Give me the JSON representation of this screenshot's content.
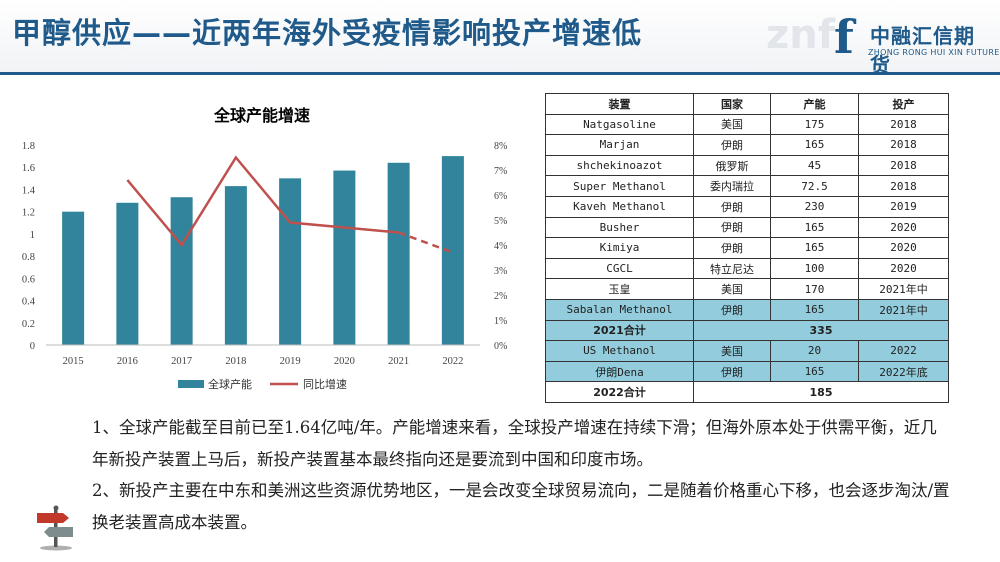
{
  "header": {
    "title": "甲醇供应——近两年海外受疫情影响投产增速低",
    "logo_cn": "中融汇信期货",
    "logo_en": "ZHONG RONG HUI XIN FUTURES"
  },
  "chart_data": {
    "type": "bar",
    "title": "全球产能增速",
    "categories": [
      "2015",
      "2016",
      "2017",
      "2018",
      "2019",
      "2020",
      "2021",
      "2022"
    ],
    "ylim": [
      0,
      1.8
    ],
    "yticks": [
      "0",
      "0.2",
      "0.4",
      "0.6",
      "0.8",
      "1",
      "1.2",
      "1.4",
      "1.6",
      "1.8"
    ],
    "y2lim": [
      0,
      8
    ],
    "y2ticks": [
      "0%",
      "1%",
      "2%",
      "3%",
      "4%",
      "5%",
      "6%",
      "7%",
      "8%"
    ],
    "grid": false,
    "legend_position": "bottom",
    "series": [
      {
        "name": "全球产能",
        "type": "bar",
        "color": "#31849b",
        "values": [
          1.2,
          1.28,
          1.33,
          1.43,
          1.5,
          1.57,
          1.64,
          1.7
        ]
      },
      {
        "name": "同比增速",
        "type": "line",
        "axis": "right",
        "color": "#c0504d",
        "values": [
          null,
          6.6,
          4.0,
          7.5,
          4.9,
          4.7,
          4.5,
          3.7
        ],
        "dashed_from": "2021"
      }
    ]
  },
  "table": {
    "headers": [
      "装置",
      "国家",
      "产能",
      "投产"
    ],
    "rows": [
      [
        "Natgasoline",
        "美国",
        "175",
        "2018"
      ],
      [
        "Marjan",
        "伊朗",
        "165",
        "2018"
      ],
      [
        "shchekinoazot",
        "俄罗斯",
        "45",
        "2018"
      ],
      [
        "Super Methanol",
        "委内瑞拉",
        "72.5",
        "2018"
      ],
      [
        "Kaveh Methanol",
        "伊朗",
        "230",
        "2019"
      ],
      [
        "Busher",
        "伊朗",
        "165",
        "2020"
      ],
      [
        "Kimiya",
        "伊朗",
        "165",
        "2020"
      ],
      [
        "CGCL",
        "特立尼达",
        "100",
        "2020"
      ],
      [
        "玉皇",
        "美国",
        "170",
        "2021年中"
      ],
      [
        "Sabalan Methanol",
        "伊朗",
        "165",
        "2021年中"
      ]
    ],
    "total_2021": {
      "label": "2021合计",
      "value": "335"
    },
    "rows_2022": [
      [
        "US Methanol",
        "美国",
        "20",
        "2022"
      ],
      [
        "伊朗Dena",
        "伊朗",
        "165",
        "2022年底"
      ]
    ],
    "total_2022": {
      "label": "2022合计",
      "value": "185"
    }
  },
  "body": {
    "paragraph1": "1、全球产能截至目前已至1.64亿吨/年。产能增速来看，全球投产增速在持续下滑；但海外原本处于供需平衡，近几年新投产装置上马后，新投产装置基本最终指向还是要流到中国和印度市场。",
    "paragraph2": "2、新投产主要在中东和美洲这些资源优势地区，一是会改变全球贸易流向，二是随着价格重心下移，也会逐步淘汰/置换老装置高成本装置。"
  },
  "icons": {
    "decor": "signpost-icon"
  }
}
